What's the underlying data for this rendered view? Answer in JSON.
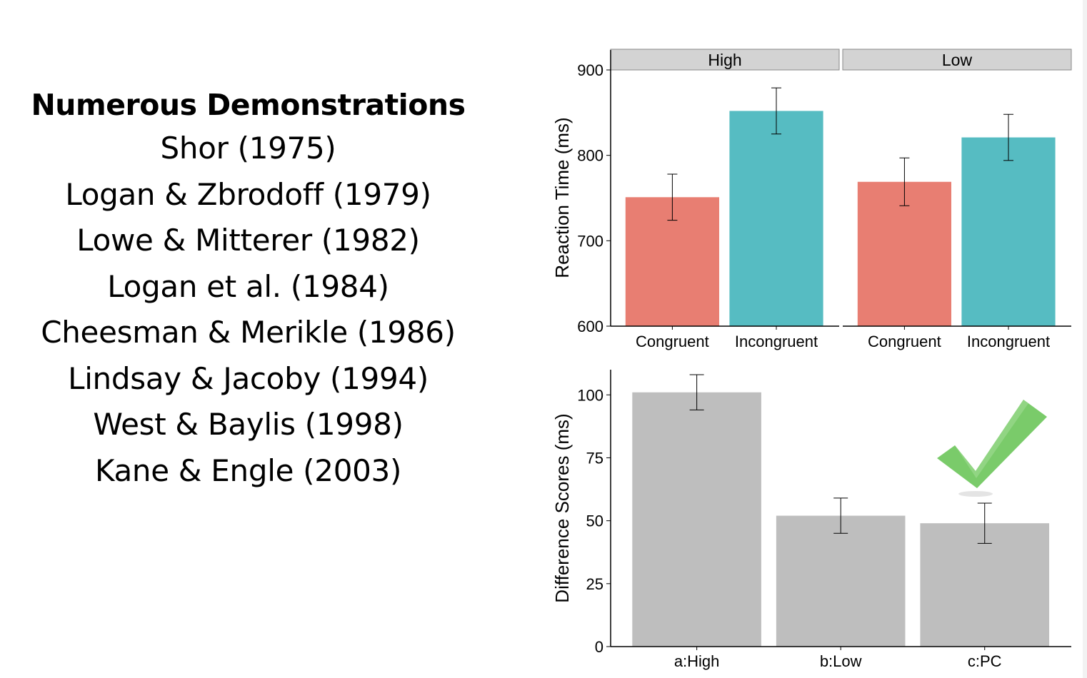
{
  "slide": {
    "heading": "Numerous Demonstrations",
    "citations": [
      "Shor (1975)",
      "Logan & Zbrodoff (1979)",
      "Lowe & Mitterer (1982)",
      "Logan et al. (1984)",
      "Cheesman & Merikle (1986)",
      "Lindsay & Jacoby (1994)",
      "West & Baylis (1998)",
      "Kane  & Engle (2003)"
    ]
  },
  "colors": {
    "congruent": "#E87E72",
    "incongruent": "#56BCC2",
    "difference_bar": "#BEBEBE",
    "strip": "#D3D3D3",
    "checkmark": "#7ACB6A"
  },
  "icons": {
    "checkmark": "checkmark-icon"
  },
  "chart_data": [
    {
      "type": "bar",
      "facets": [
        "High",
        "Low"
      ],
      "categories": [
        "Congruent",
        "Incongruent"
      ],
      "ylabel": "Reaction Time (ms)",
      "ylim": [
        600,
        900
      ],
      "yticks": [
        600,
        700,
        800,
        900
      ],
      "values": {
        "High": [
          751,
          852
        ],
        "Low": [
          769,
          821
        ]
      },
      "error_bars": {
        "High": [
          [
            724,
            778
          ],
          [
            825,
            879
          ]
        ],
        "Low": [
          [
            741,
            797
          ],
          [
            794,
            848
          ]
        ]
      },
      "grid": false
    },
    {
      "type": "bar",
      "categories": [
        "a:High",
        "b:Low",
        "c:PC"
      ],
      "values": [
        101,
        52,
        49
      ],
      "error_bars": [
        [
          94,
          108
        ],
        [
          45,
          59
        ],
        [
          41,
          57
        ]
      ],
      "ylabel": "Difference Scores (ms)",
      "ylim": [
        0,
        110
      ],
      "yticks": [
        0,
        25,
        50,
        75,
        100
      ],
      "grid": false,
      "annotations": [
        "checkmark-icon above c:PC"
      ]
    }
  ]
}
